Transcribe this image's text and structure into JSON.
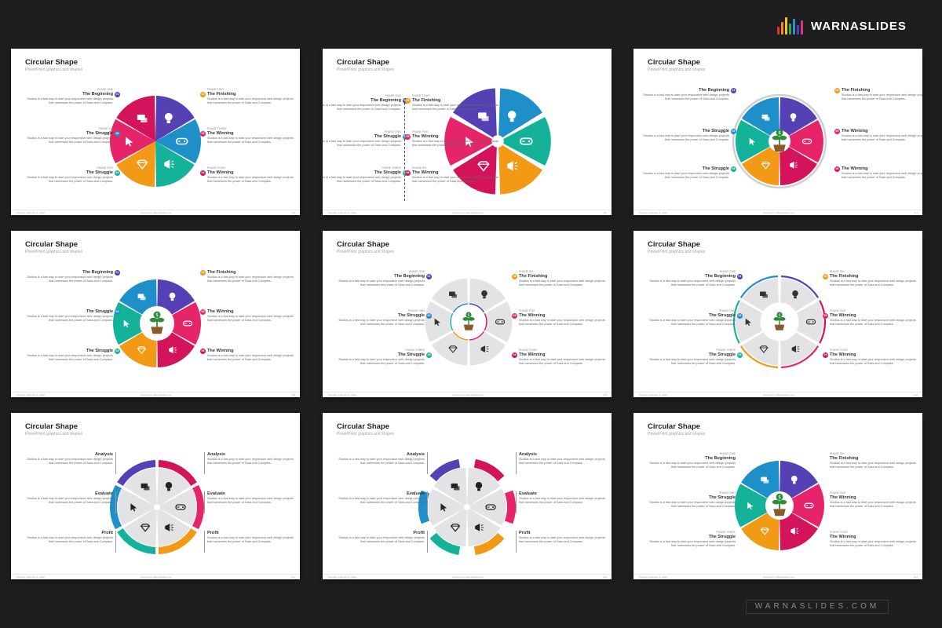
{
  "brand": {
    "name": "WARNASLIDES",
    "footer": "WARNASLIDES.COM",
    "logo_colors": [
      "#e5322d",
      "#f08c1e",
      "#f5c518",
      "#2ea84a",
      "#2a8fd6",
      "#5b3fb5",
      "#d23a8c"
    ]
  },
  "colors": {
    "purple": "#5541b3",
    "blue": "#1e8fc8",
    "teal": "#15b29a",
    "orange": "#f29a16",
    "red": "#e5246a",
    "magenta": "#d4145a",
    "grey": "#e3e3e6"
  },
  "slide_footer": {
    "left": "Thursday, February 6, 2020",
    "center": "Powered by WarnaSlides.com"
  },
  "slides": [
    {
      "title": "Circular Shape",
      "subtitle": "PowerPoint graphics and shapes",
      "page": "115",
      "blocks": [
        {
          "side": "r",
          "phase": "PHASE ONE",
          "num": "01",
          "title": "The Beginning",
          "desc": "Studios is a fast way to start your responsive web design projects that harnesses the power of Sass and Compass."
        },
        {
          "side": "r",
          "phase": "PHASE SIX",
          "num": "06",
          "title": "The Struggle",
          "desc": "Studios is a fast way to start your responsive web design projects that harnesses the power of Sass and Compass."
        },
        {
          "side": "r",
          "phase": "PHASE FIVE",
          "num": "05",
          "title": "The Struggle",
          "desc": "Studios is a fast way to start your responsive web design projects that harnesses the power of Sass and Compass."
        },
        {
          "side": "l",
          "phase": "PHASE TWO",
          "num": "02",
          "title": "The Finishing",
          "desc": "Studios is a fast way to start your responsive web design projects that harnesses the power of Sass and Compass."
        },
        {
          "side": "l",
          "phase": "PHASE THREE",
          "num": "03",
          "title": "The Winning",
          "desc": "Studios is a fast way to start your responsive web design projects that harnesses the power of Sass and Compass."
        },
        {
          "side": "l",
          "phase": "PHASE FOUR",
          "num": "04",
          "title": "The Winning",
          "desc": "Studios is a fast way to start your responsive web design projects that harnesses the power of Sass and Compass."
        }
      ]
    },
    {
      "title": "Circular Shape",
      "subtitle": "PowerPoint graphics and shapes",
      "page": "116",
      "blocks": [
        {
          "side": "r",
          "phase": "PHASE ONE",
          "num": "01",
          "title": "The Beginning",
          "desc": "Studios is a fast way to start your responsive web design projects that harnesses the power of Sass and Compass."
        },
        {
          "side": "r",
          "phase": "PHASE TWO",
          "num": "02",
          "title": "The Struggle",
          "desc": "Studios is a fast way to start your responsive web design projects that harnesses the power of Sass and Compass."
        },
        {
          "side": "r",
          "phase": "PHASE THREE",
          "num": "03",
          "title": "The Struggle",
          "desc": "Studios is a fast way to start your responsive web design projects that harnesses the power of Sass and Compass."
        },
        {
          "side": "l",
          "phase": "PHASE FOUR",
          "num": "04",
          "title": "The Finishing",
          "desc": "Studios is a fast way to start your responsive web design projects that harnesses the power of Sass and Compass."
        },
        {
          "side": "l",
          "phase": "PHASE FIVE",
          "num": "05",
          "title": "The Winning",
          "desc": "Studios is a fast way to start your responsive web design projects that harnesses the power of Sass and Compass."
        },
        {
          "side": "l",
          "phase": "PHASE SIX",
          "num": "06",
          "title": "The Winning",
          "desc": "Studios is a fast way to start your responsive web design projects that harnesses the power of Sass and Compass."
        }
      ]
    },
    {
      "title": "Circular Shape",
      "subtitle": "PowerPoint graphics and shapes",
      "page": "117",
      "blocks": [
        {
          "side": "r",
          "phase": "",
          "num": "01",
          "title": "The Beginning",
          "desc": "Studios is a fast way to start your responsive web design projects that harnesses the power of Sass and Compass."
        },
        {
          "side": "r",
          "phase": "",
          "num": "02",
          "title": "The Struggle",
          "desc": "Studios is a fast way to start your responsive web design projects that harnesses the power of Sass and Compass."
        },
        {
          "side": "r",
          "phase": "",
          "num": "03",
          "title": "The Struggle",
          "desc": "Studios is a fast way to start your responsive web design projects that harnesses the power of Sass and Compass."
        },
        {
          "side": "l",
          "phase": "",
          "num": "04",
          "title": "The Finishing",
          "desc": "Studios is a fast way to start your responsive web design projects that harnesses the power of Sass and Compass."
        },
        {
          "side": "l",
          "phase": "",
          "num": "05",
          "title": "The Winning",
          "desc": "Studios is a fast way to start your responsive web design projects that harnesses the power of Sass and Compass."
        },
        {
          "side": "l",
          "phase": "",
          "num": "06",
          "title": "The Winning",
          "desc": "Studios is a fast way to start your responsive web design projects that harnesses the power of Sass and Compass."
        }
      ]
    },
    {
      "title": "Circular Shape",
      "subtitle": "PowerPoint graphics and shapes",
      "page": "118",
      "blocks": [
        {
          "side": "r",
          "phase": "",
          "num": "01",
          "title": "The Beginning",
          "desc": "Studios is a fast way to start your responsive web design projects that harnesses the power of Sass and Compass."
        },
        {
          "side": "r",
          "phase": "",
          "num": "02",
          "title": "The Struggle",
          "desc": "Studios is a fast way to start your responsive web design projects that harnesses the power of Sass and Compass."
        },
        {
          "side": "r",
          "phase": "",
          "num": "03",
          "title": "The Struggle",
          "desc": "Studios is a fast way to start your responsive web design projects that harnesses the power of Sass and Compass."
        },
        {
          "side": "l",
          "phase": "",
          "num": "04",
          "title": "The Finishing",
          "desc": "Studios is a fast way to start your responsive web design projects that harnesses the power of Sass and Compass."
        },
        {
          "side": "l",
          "phase": "",
          "num": "05",
          "title": "The Winning",
          "desc": "Studios is a fast way to start your responsive web design projects that harnesses the power of Sass and Compass."
        },
        {
          "side": "l",
          "phase": "",
          "num": "06",
          "title": "The Winning",
          "desc": "Studios is a fast way to start your responsive web design projects that harnesses the power of Sass and Compass."
        }
      ]
    },
    {
      "title": "Circular Shape",
      "subtitle": "PowerPoint graphics and shapes",
      "page": "119",
      "blocks": [
        {
          "side": "r",
          "phase": "PHASE ONE",
          "num": "01",
          "title": "The Beginning",
          "desc": "Studios is a fast way to start your responsive web design projects that harnesses the power of Sass and Compass."
        },
        {
          "side": "r",
          "phase": "PHASE TWO",
          "num": "02",
          "title": "The Struggle",
          "desc": "Studios is a fast way to start your responsive web design projects that harnesses the power of Sass and Compass."
        },
        {
          "side": "r",
          "phase": "PHASE THREE",
          "num": "03",
          "title": "The Struggle",
          "desc": "Studios is a fast way to start your responsive web design projects that harnesses the power of Sass and Compass."
        },
        {
          "side": "l",
          "phase": "PHASE SIX",
          "num": "06",
          "title": "The Finishing",
          "desc": "Studios is a fast way to start your responsive web design projects that harnesses the power of Sass and Compass."
        },
        {
          "side": "l",
          "phase": "PHASE FIVE",
          "num": "05",
          "title": "The Winning",
          "desc": "Studios is a fast way to start your responsive web design projects that harnesses the power of Sass and Compass."
        },
        {
          "side": "l",
          "phase": "PHASE FOUR",
          "num": "04",
          "title": "The Winning",
          "desc": "Studios is a fast way to start your responsive web design projects that harnesses the power of Sass and Compass."
        }
      ]
    },
    {
      "title": "Circular Shape",
      "subtitle": "PowerPoint graphics and shapes",
      "page": "120",
      "blocks": [
        {
          "side": "r",
          "phase": "PHASE ONE",
          "num": "01",
          "title": "The Beginning",
          "desc": "Studios is a fast way to start your responsive web design projects that harnesses the power of Sass and Compass."
        },
        {
          "side": "r",
          "phase": "PHASE TWO",
          "num": "02",
          "title": "The Struggle",
          "desc": "Studios is a fast way to start your responsive web design projects that harnesses the power of Sass and Compass."
        },
        {
          "side": "r",
          "phase": "PHASE THREE",
          "num": "03",
          "title": "The Struggle",
          "desc": "Studios is a fast way to start your responsive web design projects that harnesses the power of Sass and Compass."
        },
        {
          "side": "l",
          "phase": "PHASE SIX",
          "num": "06",
          "title": "The Finishing",
          "desc": "Studios is a fast way to start your responsive web design projects that harnesses the power of Sass and Compass."
        },
        {
          "side": "l",
          "phase": "PHASE FIVE",
          "num": "05",
          "title": "The Winning",
          "desc": "Studios is a fast way to start your responsive web design projects that harnesses the power of Sass and Compass."
        },
        {
          "side": "l",
          "phase": "PHASE FOUR",
          "num": "04",
          "title": "The Winning",
          "desc": "Studios is a fast way to start your responsive web design projects that harnesses the power of Sass and Compass."
        }
      ]
    },
    {
      "title": "Circular Shape",
      "subtitle": "PowerPoint graphics and shapes",
      "page": "121",
      "blocks": [
        {
          "side": "r",
          "phase": "",
          "num": "",
          "title": "Analysis",
          "desc": "Studios is a fast way to start your responsive web design projects that harnesses the power of Sass and Compass."
        },
        {
          "side": "r",
          "phase": "",
          "num": "",
          "title": "Evaluate",
          "desc": "Studios is a fast way to start your responsive web design projects that harnesses the power of Sass and Compass."
        },
        {
          "side": "r",
          "phase": "",
          "num": "",
          "title": "Profit",
          "desc": "Studios is a fast way to start your responsive web design projects that harnesses the power of Sass and Compass."
        },
        {
          "side": "l",
          "phase": "",
          "num": "",
          "title": "Analysis",
          "desc": "Studios is a fast way to start your responsive web design projects that harnesses the power of Sass and Compass."
        },
        {
          "side": "l",
          "phase": "",
          "num": "",
          "title": "Evaluate",
          "desc": "Studios is a fast way to start your responsive web design projects that harnesses the power of Sass and Compass."
        },
        {
          "side": "l",
          "phase": "",
          "num": "",
          "title": "Profit",
          "desc": "Studios is a fast way to start your responsive web design projects that harnesses the power of Sass and Compass."
        }
      ]
    },
    {
      "title": "Circular Shape",
      "subtitle": "PowerPoint graphics and shapes",
      "page": "122",
      "blocks": [
        {
          "side": "r",
          "phase": "",
          "num": "",
          "title": "Analysis",
          "desc": "Studios is a fast way to start your responsive web design projects that harnesses the power of Sass and Compass."
        },
        {
          "side": "r",
          "phase": "",
          "num": "",
          "title": "Evaluate",
          "desc": "Studios is a fast way to start your responsive web design projects that harnesses the power of Sass and Compass."
        },
        {
          "side": "r",
          "phase": "",
          "num": "",
          "title": "Profit",
          "desc": "Studios is a fast way to start your responsive web design projects that harnesses the power of Sass and Compass."
        },
        {
          "side": "l",
          "phase": "",
          "num": "",
          "title": "Analysis",
          "desc": "Studios is a fast way to start your responsive web design projects that harnesses the power of Sass and Compass."
        },
        {
          "side": "l",
          "phase": "",
          "num": "",
          "title": "Evaluate",
          "desc": "Studios is a fast way to start your responsive web design projects that harnesses the power of Sass and Compass."
        },
        {
          "side": "l",
          "phase": "",
          "num": "",
          "title": "Profit",
          "desc": "Studios is a fast way to start your responsive web design projects that harnesses the power of Sass and Compass."
        }
      ]
    },
    {
      "title": "Circular Shape",
      "subtitle": "PowerPoint graphics and shapes",
      "page": "123",
      "blocks": [
        {
          "side": "r",
          "phase": "PHASE ONE",
          "num": "",
          "title": "The Beginning",
          "desc": "Studios is a fast way to start your responsive web design projects that harnesses the power of Sass and Compass."
        },
        {
          "side": "r",
          "phase": "PHASE TWO",
          "num": "",
          "title": "The Struggle",
          "desc": "Studios is a fast way to start your responsive web design projects that harnesses the power of Sass and Compass."
        },
        {
          "side": "r",
          "phase": "PHASE THREE",
          "num": "",
          "title": "The Struggle",
          "desc": "Studios is a fast way to start your responsive web design projects that harnesses the power of Sass and Compass."
        },
        {
          "side": "l",
          "phase": "PHASE SIX",
          "num": "",
          "title": "The Finishing",
          "desc": "Studios is a fast way to start your responsive web design projects that harnesses the power of Sass and Compass."
        },
        {
          "side": "l",
          "phase": "PHASE FIVE",
          "num": "",
          "title": "The Winning",
          "desc": "Studios is a fast way to start your responsive web design projects that harnesses the power of Sass and Compass."
        },
        {
          "side": "l",
          "phase": "PHASE FOUR",
          "num": "",
          "title": "The Winning",
          "desc": "Studios is a fast way to start your responsive web design projects that harnesses the power of Sass and Compass."
        }
      ]
    }
  ]
}
